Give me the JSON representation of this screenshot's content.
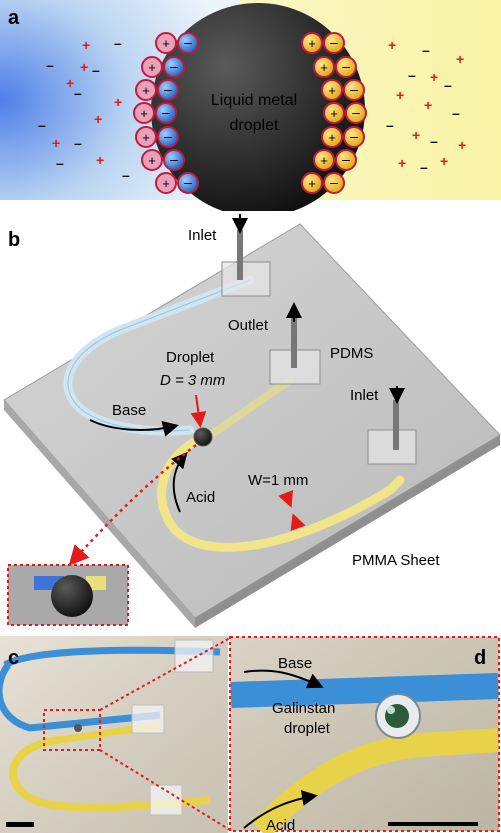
{
  "panel_a": {
    "letter": "a",
    "droplet_label_line1": "Liquid metal",
    "droplet_label_line2": "droplet",
    "charge_plus": "+",
    "charge_minus": "–"
  },
  "panel_b": {
    "letter": "b",
    "inlet_top": "Inlet",
    "outlet": "Outlet",
    "pdms": "PDMS",
    "inlet_right": "Inlet",
    "droplet_line1": "Droplet",
    "droplet_line2": "D = 3 mm",
    "base": "Base",
    "acid": "Acid",
    "width": "W=1 mm",
    "sheet": "PMMA Sheet"
  },
  "panel_c": {
    "letter": "c"
  },
  "panel_d": {
    "letter": "d",
    "base": "Base",
    "galinstan_line1": "Galinstan",
    "galinstan_line2": "droplet",
    "acid": "Acid"
  },
  "colors": {
    "base_blue": "#3a8fd6",
    "acid_yellow": "#e8d24a",
    "charge_red": "#e31b1b",
    "dotted_red": "#e31b1b"
  }
}
